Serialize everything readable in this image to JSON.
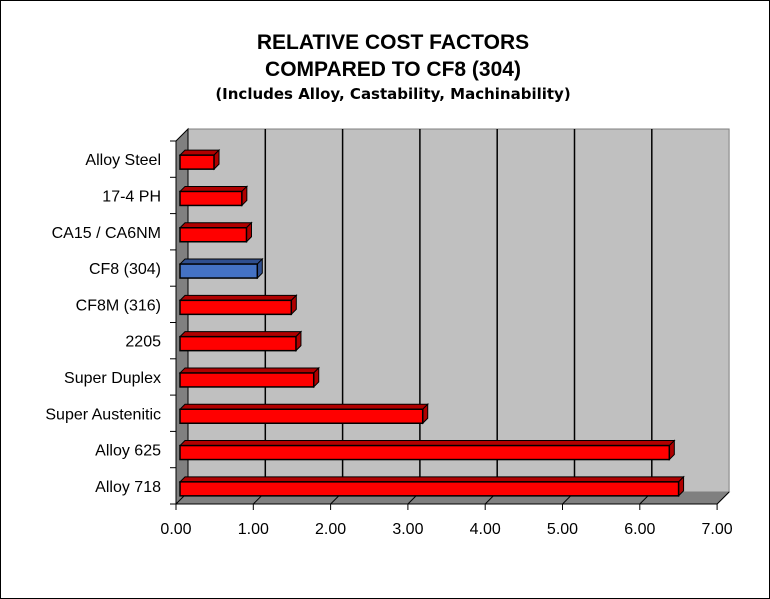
{
  "chart_data": {
    "type": "bar",
    "orientation": "horizontal",
    "style": "3d",
    "title": "RELATIVE COST FACTORS",
    "title_line2": "COMPARED TO CF8 (304)",
    "subtitle": "(Includes Alloy, Castability, Machinability)",
    "xlabel": "",
    "ylabel": "",
    "xlim": [
      0,
      7
    ],
    "x_ticks": [
      "0.00",
      "1.00",
      "2.00",
      "3.00",
      "4.00",
      "5.00",
      "6.00",
      "7.00"
    ],
    "grid": true,
    "legend": "none",
    "categories": [
      "Alloy Steel",
      "17-4 PH",
      "CA15 / CA6NM",
      "CF8 (304)",
      "CF8M (316)",
      "2205",
      "Super Duplex",
      "Super Austenitic",
      "Alloy 625",
      "Alloy 718"
    ],
    "values": [
      0.44,
      0.8,
      0.86,
      1.0,
      1.44,
      1.5,
      1.73,
      3.14,
      6.33,
      6.45
    ],
    "colors": {
      "default": "#FF0000",
      "highlight": "#4472C4",
      "highlight_category": "CF8 (304)",
      "plot_background": "#C0C0C0",
      "walls": "#808080"
    }
  }
}
